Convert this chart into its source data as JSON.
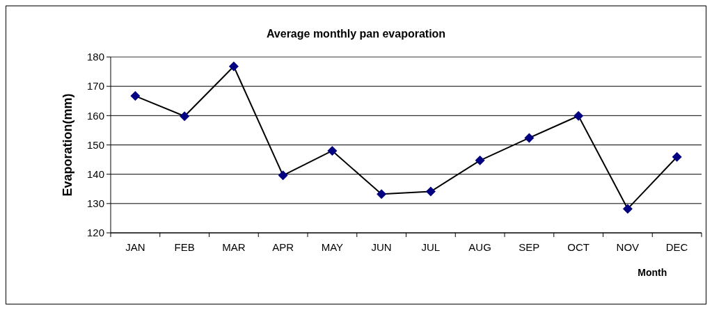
{
  "chart_data": {
    "type": "line",
    "title": "Average monthly pan evaporation",
    "xlabel": "Month",
    "ylabel": "Evaporation(mm)",
    "categories": [
      "JAN",
      "FEB",
      "MAR",
      "APR",
      "MAY",
      "JUN",
      "JUL",
      "AUG",
      "SEP",
      "OCT",
      "NOV",
      "DEC"
    ],
    "series": [
      {
        "color": "#000080",
        "values": [
          166.7,
          159.8,
          176.8,
          139.6,
          148.0,
          133.2,
          134.1,
          144.7,
          152.4,
          159.9,
          128.2,
          145.9
        ]
      }
    ],
    "ylim": [
      120,
      180
    ],
    "yticks": [
      120,
      130,
      140,
      150,
      160,
      170,
      180
    ],
    "grid": "y",
    "marker": "diamond",
    "line_style": "solid"
  }
}
